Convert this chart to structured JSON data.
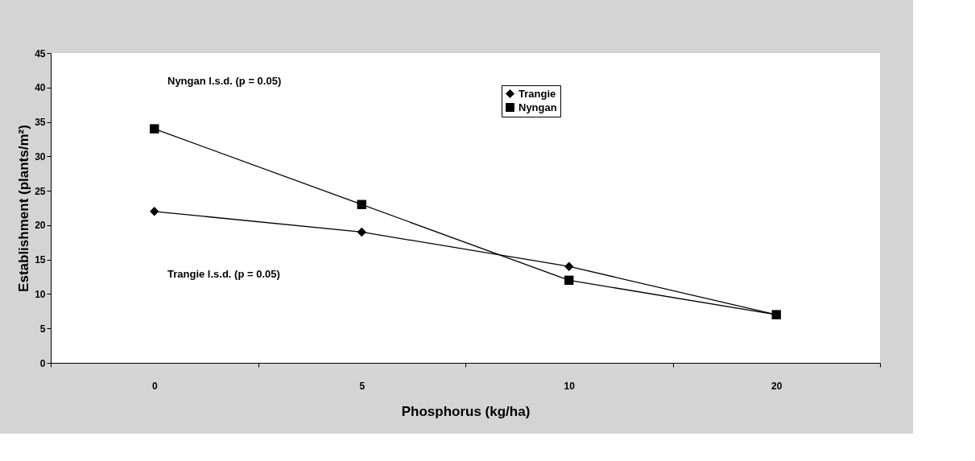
{
  "chart_data": {
    "type": "line",
    "xlabel": "Phosphorus (kg/ha)",
    "ylabel": "Establishment (plants/m²)",
    "categories": [
      "0",
      "5",
      "10",
      "20"
    ],
    "series": [
      {
        "name": "Trangie",
        "color": "#000000",
        "marker": "diamond",
        "values": [
          22,
          19,
          14,
          7
        ]
      },
      {
        "name": "Nyngan",
        "color": "#000000",
        "marker": "square",
        "values": [
          34,
          23,
          12,
          7
        ]
      }
    ],
    "ylim": [
      0,
      45
    ],
    "yticks": [
      0,
      5,
      10,
      15,
      20,
      25,
      30,
      35,
      40,
      45
    ],
    "annotations": [
      "Nyngan l.s.d. (p = 0.05)",
      "Trangie l.s.d. (p = 0.05)"
    ],
    "grid": false,
    "legend": "top right",
    "line_style": "solid"
  }
}
